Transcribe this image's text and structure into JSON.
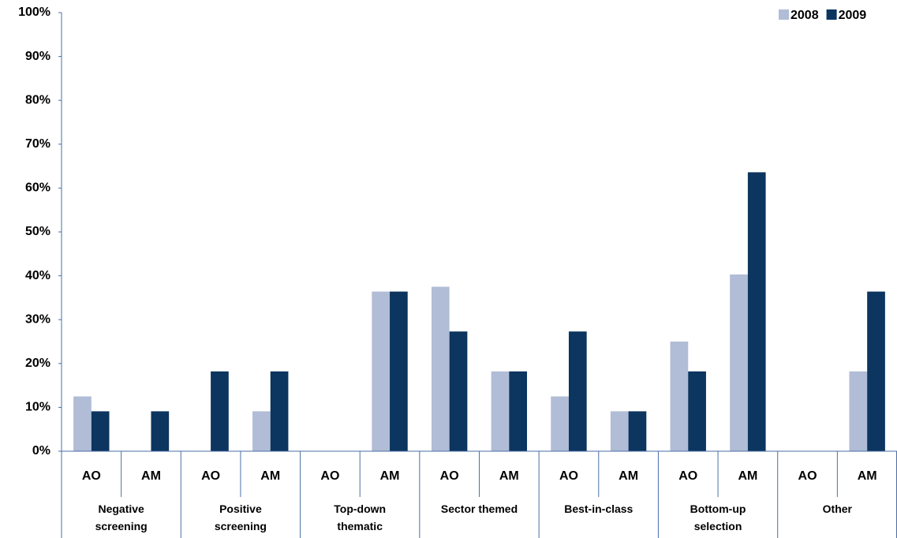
{
  "chart_data": {
    "type": "bar",
    "categories": [
      "AO",
      "AM",
      "AO",
      "AM",
      "AO",
      "AM",
      "AO",
      "AM",
      "AO",
      "AM",
      "AO",
      "AM",
      "AO",
      "AM"
    ],
    "groups": [
      "Negative screening",
      "Positive screening",
      "Top-down thematic",
      "Sector themed",
      "Best-in-class",
      "Bottom-up selection",
      "Other"
    ],
    "series": [
      {
        "name": "2008",
        "color": "#b1bcd6",
        "values": [
          12.5,
          0,
          0,
          9.1,
          0,
          36.4,
          37.5,
          18.2,
          12.5,
          9.1,
          25,
          40.3,
          0,
          18.2
        ]
      },
      {
        "name": "2009",
        "color": "#0c355f",
        "values": [
          9.1,
          9.1,
          18.2,
          18.2,
          0,
          36.4,
          27.3,
          18.2,
          27.3,
          9.1,
          18.2,
          63.6,
          0,
          36.4
        ]
      }
    ],
    "ylim": [
      0,
      100
    ],
    "yticks": [
      {
        "value": 0,
        "label": "0%"
      },
      {
        "value": 10,
        "label": "10%"
      },
      {
        "value": 20,
        "label": "20%"
      },
      {
        "value": 30,
        "label": "30%"
      },
      {
        "value": 40,
        "label": "40%"
      },
      {
        "value": 50,
        "label": "50%"
      },
      {
        "value": 60,
        "label": "60%"
      },
      {
        "value": 70,
        "label": "70%"
      },
      {
        "value": 80,
        "label": "80%"
      },
      {
        "value": 90,
        "label": "90%"
      },
      {
        "value": 100,
        "label": "100%"
      }
    ],
    "legend": "top-right"
  }
}
